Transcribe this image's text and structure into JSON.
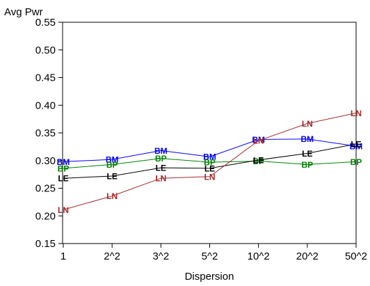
{
  "chart_data": {
    "type": "line",
    "ylabel": "Avg Pwr",
    "xlabel": "Dispersion",
    "categories": [
      "1",
      "2^2",
      "3^2",
      "5^2",
      "10^2",
      "20^2",
      "50^2"
    ],
    "ylim": [
      0.15,
      0.55
    ],
    "yticks": [
      "0.15",
      "0.20",
      "0.25",
      "0.30",
      "0.35",
      "0.40",
      "0.45",
      "0.50",
      "0.55"
    ],
    "grid": false,
    "legend": "none",
    "series": [
      {
        "name": "BM",
        "color": "#0000ff",
        "values": [
          0.298,
          0.302,
          0.318,
          0.307,
          0.338,
          0.339,
          0.326
        ]
      },
      {
        "name": "BP",
        "color": "#008000",
        "values": [
          0.286,
          0.293,
          0.304,
          0.297,
          0.299,
          0.293,
          0.298
        ]
      },
      {
        "name": "LE",
        "color": "#000000",
        "values": [
          0.268,
          0.272,
          0.287,
          0.286,
          0.301,
          0.313,
          0.33
        ]
      },
      {
        "name": "LN",
        "color": "#a52a2a",
        "values": [
          0.211,
          0.236,
          0.268,
          0.271,
          0.336,
          0.367,
          0.386
        ]
      }
    ]
  }
}
